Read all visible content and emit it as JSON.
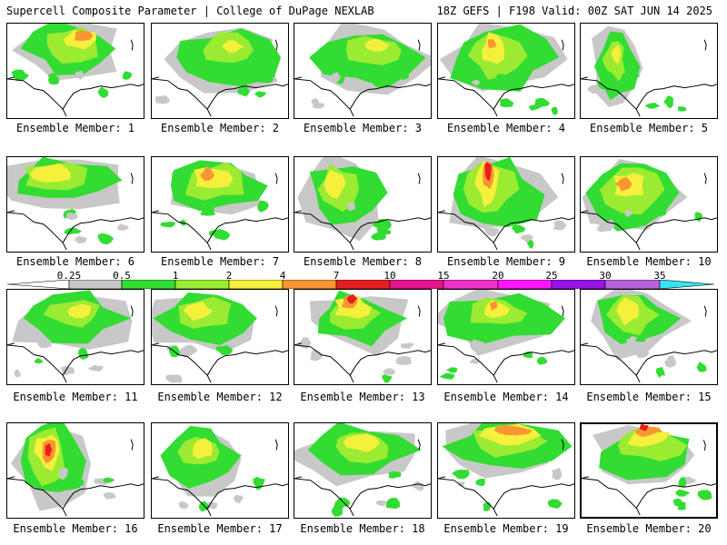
{
  "header": {
    "title": "Supercell Composite Parameter | College of DuPage NEXLAB",
    "run_info": "18Z GEFS | F198 Valid: 00Z SAT JUN 14 2025"
  },
  "panels": [
    {
      "label": "Ensemble Member: 1"
    },
    {
      "label": "Ensemble Member: 2"
    },
    {
      "label": "Ensemble Member: 3"
    },
    {
      "label": "Ensemble Member: 4"
    },
    {
      "label": "Ensemble Member: 5"
    },
    {
      "label": "Ensemble Member: 6"
    },
    {
      "label": "Ensemble Member: 7"
    },
    {
      "label": "Ensemble Member: 8"
    },
    {
      "label": "Ensemble Member: 9"
    },
    {
      "label": "Ensemble Member: 10"
    },
    {
      "label": "Ensemble Member: 11"
    },
    {
      "label": "Ensemble Member: 12"
    },
    {
      "label": "Ensemble Member: 13"
    },
    {
      "label": "Ensemble Member: 14"
    },
    {
      "label": "Ensemble Member: 15"
    },
    {
      "label": "Ensemble Member: 16"
    },
    {
      "label": "Ensemble Member: 17"
    },
    {
      "label": "Ensemble Member: 18"
    },
    {
      "label": "Ensemble Member: 19"
    },
    {
      "label": "Ensemble Member: 20"
    }
  ],
  "colorbar": {
    "ticks": [
      "0.25",
      "0.5",
      "1",
      "2",
      "4",
      "7",
      "10",
      "15",
      "20",
      "25",
      "30",
      "35"
    ],
    "colors": [
      "#c8c8c8",
      "#32dc32",
      "#9beb32",
      "#f5f03c",
      "#fa9632",
      "#e61e1e",
      "#e6148c",
      "#f032c8",
      "#ff14ff",
      "#9614e6",
      "#b464dc",
      "#32e6f0"
    ]
  },
  "colors": {
    "gray": "#c8c8c8",
    "green": "#32dc32",
    "lightgreen": "#9beb32",
    "yellow": "#f5f03c",
    "orange": "#fa9632",
    "red": "#e61e1e"
  }
}
